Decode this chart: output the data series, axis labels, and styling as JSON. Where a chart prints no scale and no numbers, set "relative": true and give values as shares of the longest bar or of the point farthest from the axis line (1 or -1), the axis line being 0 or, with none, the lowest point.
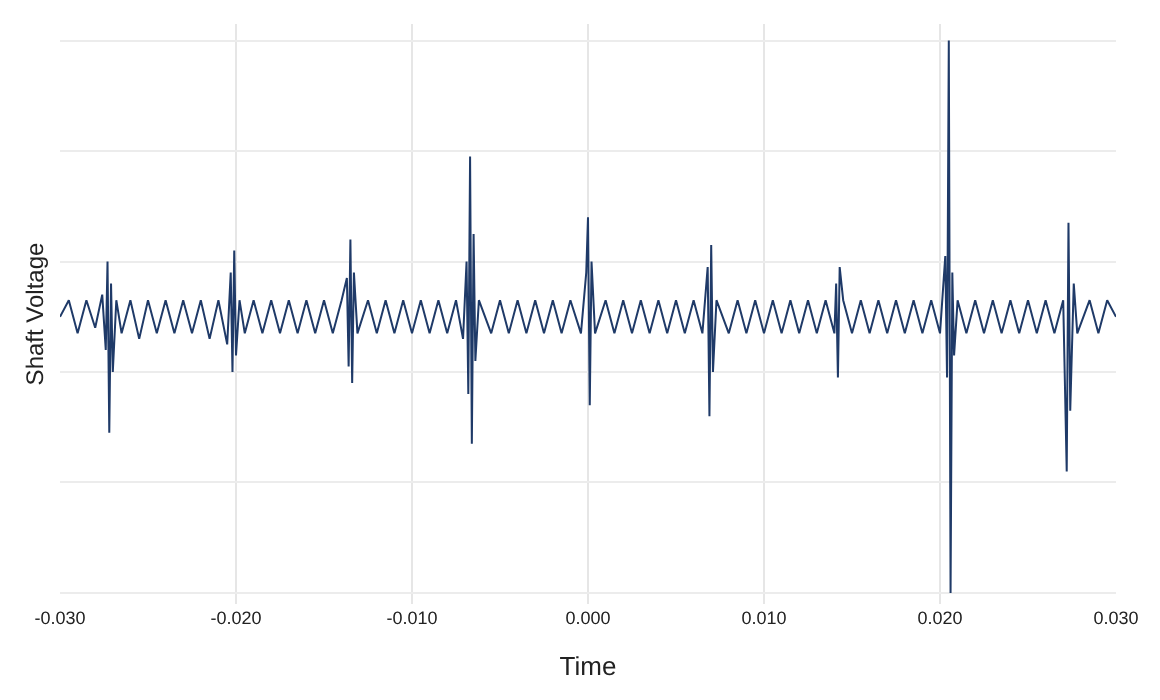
{
  "chart_data": {
    "type": "line",
    "relative": true,
    "xlabel": "Time",
    "ylabel": "Shaft Voltage",
    "grid": true,
    "marker": "none",
    "line_style": "solid",
    "xlim": [
      -0.03,
      0.03
    ],
    "xticks": [
      {
        "value": -0.03,
        "label": "-0.030"
      },
      {
        "value": -0.02,
        "label": "-0.020"
      },
      {
        "value": -0.01,
        "label": "-0.010"
      },
      {
        "value": 0,
        "label": "0.000"
      },
      {
        "value": 0.01,
        "label": "0.010"
      },
      {
        "value": 0.02,
        "label": "0.020"
      },
      {
        "value": 0.03,
        "label": "0.030"
      }
    ],
    "series": [
      {
        "color": "#1f3a68",
        "x": [
          -0.03,
          -0.0295,
          -0.029,
          -0.0285,
          -0.028,
          -0.0276,
          -0.0274,
          -0.0273,
          -0.0272,
          -0.0271,
          -0.027,
          -0.0268,
          -0.0265,
          -0.026,
          -0.0255,
          -0.025,
          -0.0245,
          -0.024,
          -0.0235,
          -0.023,
          -0.0225,
          -0.022,
          -0.0215,
          -0.021,
          -0.0205,
          -0.0203,
          -0.0202,
          -0.0201,
          -0.02,
          -0.0198,
          -0.0195,
          -0.019,
          -0.0185,
          -0.018,
          -0.0175,
          -0.017,
          -0.0165,
          -0.016,
          -0.0155,
          -0.015,
          -0.0145,
          -0.014,
          -0.0137,
          -0.0136,
          -0.0135,
          -0.0134,
          -0.0133,
          -0.0131,
          -0.0125,
          -0.012,
          -0.0115,
          -0.011,
          -0.0105,
          -0.01,
          -0.0095,
          -0.009,
          -0.0085,
          -0.008,
          -0.0075,
          -0.0071,
          -0.0069,
          -0.0068,
          -0.0067,
          -0.0066,
          -0.0065,
          -0.0064,
          -0.0062,
          -0.0055,
          -0.005,
          -0.0045,
          -0.004,
          -0.0035,
          -0.003,
          -0.0025,
          -0.002,
          -0.0015,
          -0.001,
          -0.0004,
          -0.0001,
          0.0,
          0.0001,
          0.0002,
          0.0004,
          0.001,
          0.0015,
          0.002,
          0.0025,
          0.003,
          0.0035,
          0.004,
          0.0045,
          0.005,
          0.0055,
          0.006,
          0.0065,
          0.0068,
          0.0069,
          0.007,
          0.0071,
          0.0073,
          0.008,
          0.0085,
          0.009,
          0.0095,
          0.01,
          0.0105,
          0.011,
          0.0115,
          0.012,
          0.0125,
          0.013,
          0.0135,
          0.014,
          0.0141,
          0.0142,
          0.0143,
          0.0145,
          0.015,
          0.0155,
          0.016,
          0.0165,
          0.017,
          0.0175,
          0.018,
          0.0185,
          0.019,
          0.0195,
          0.02,
          0.0203,
          0.0204,
          0.0205,
          0.0206,
          0.0207,
          0.0208,
          0.021,
          0.0215,
          0.022,
          0.0225,
          0.023,
          0.0235,
          0.024,
          0.0245,
          0.025,
          0.0255,
          0.026,
          0.0265,
          0.027,
          0.0272,
          0.0273,
          0.0274,
          0.0276,
          0.0278,
          0.0285,
          0.029,
          0.0295,
          0.03
        ],
        "values": [
          0.5,
          0.53,
          0.47,
          0.53,
          0.48,
          0.54,
          0.44,
          0.6,
          0.29,
          0.56,
          0.4,
          0.53,
          0.47,
          0.53,
          0.46,
          0.53,
          0.47,
          0.53,
          0.47,
          0.53,
          0.47,
          0.53,
          0.46,
          0.53,
          0.45,
          0.58,
          0.4,
          0.62,
          0.43,
          0.53,
          0.47,
          0.53,
          0.47,
          0.53,
          0.47,
          0.53,
          0.47,
          0.53,
          0.47,
          0.53,
          0.47,
          0.53,
          0.57,
          0.41,
          0.64,
          0.38,
          0.58,
          0.47,
          0.53,
          0.47,
          0.53,
          0.47,
          0.53,
          0.47,
          0.53,
          0.47,
          0.53,
          0.47,
          0.53,
          0.46,
          0.6,
          0.36,
          0.79,
          0.27,
          0.65,
          0.42,
          0.53,
          0.47,
          0.53,
          0.47,
          0.53,
          0.47,
          0.53,
          0.47,
          0.53,
          0.47,
          0.53,
          0.47,
          0.58,
          0.68,
          0.34,
          0.6,
          0.47,
          0.53,
          0.47,
          0.53,
          0.47,
          0.53,
          0.47,
          0.53,
          0.47,
          0.53,
          0.47,
          0.53,
          0.47,
          0.59,
          0.32,
          0.63,
          0.4,
          0.53,
          0.47,
          0.53,
          0.47,
          0.53,
          0.47,
          0.53,
          0.47,
          0.53,
          0.47,
          0.53,
          0.47,
          0.53,
          0.47,
          0.56,
          0.39,
          0.59,
          0.53,
          0.47,
          0.53,
          0.47,
          0.53,
          0.47,
          0.53,
          0.47,
          0.53,
          0.47,
          0.53,
          0.47,
          0.61,
          0.39,
          1.0,
          0.0,
          0.58,
          0.43,
          0.53,
          0.47,
          0.53,
          0.47,
          0.53,
          0.47,
          0.53,
          0.47,
          0.53,
          0.47,
          0.53,
          0.47,
          0.53,
          0.22,
          0.67,
          0.33,
          0.56,
          0.47,
          0.53,
          0.47,
          0.53,
          0.5
        ]
      }
    ]
  }
}
